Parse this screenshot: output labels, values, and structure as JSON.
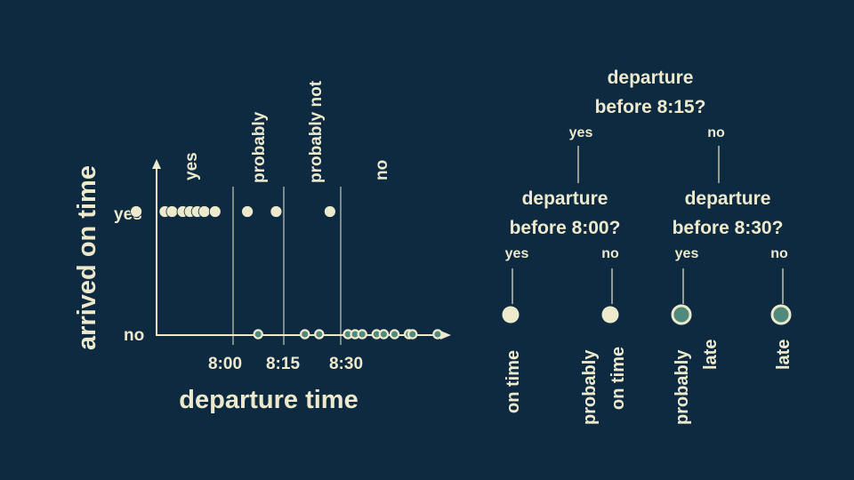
{
  "colors": {
    "background": "#0e2a40",
    "foreground": "#ede9cd",
    "accent": "#4f8a7c"
  },
  "chart_data": {
    "type": "scatter",
    "xlabel": "departure time",
    "ylabel": "arrived on time",
    "x_ticks": [
      "8:00",
      "8:15",
      "8:30"
    ],
    "y_ticks": [
      "yes",
      "no"
    ],
    "thresholds": [
      "8:00",
      "8:15",
      "8:30"
    ],
    "region_labels": [
      "yes",
      "probably",
      "probably not",
      "no"
    ],
    "series": [
      {
        "name": "yes",
        "x": [
          "7:33",
          "7:41",
          "7:43",
          "7:46",
          "7:48",
          "7:50",
          "7:52",
          "7:55",
          "8:04",
          "8:12",
          "8:27"
        ]
      },
      {
        "name": "no",
        "x": [
          "8:07",
          "8:20",
          "8:24",
          "8:32",
          "8:34",
          "8:36",
          "8:40",
          "8:42",
          "8:45",
          "8:49",
          "8:50",
          "8:57"
        ]
      }
    ]
  },
  "tree": {
    "root": {
      "question_line1": "departure",
      "question_line2": "before 8:15?",
      "yes_label": "yes",
      "no_label": "no"
    },
    "left": {
      "question_line1": "departure",
      "question_line2": "before 8:00?",
      "yes_label": "yes",
      "no_label": "no"
    },
    "right": {
      "question_line1": "departure",
      "question_line2": "before 8:30?",
      "yes_label": "yes",
      "no_label": "no"
    },
    "leaves": [
      {
        "line1": "on time",
        "line2": "",
        "outcome": "on time"
      },
      {
        "line1": "probably",
        "line2": "on time",
        "outcome": "on time"
      },
      {
        "line1": "probably",
        "line2": "late",
        "outcome": "late"
      },
      {
        "line1": "late",
        "line2": "",
        "outcome": "late"
      }
    ]
  }
}
